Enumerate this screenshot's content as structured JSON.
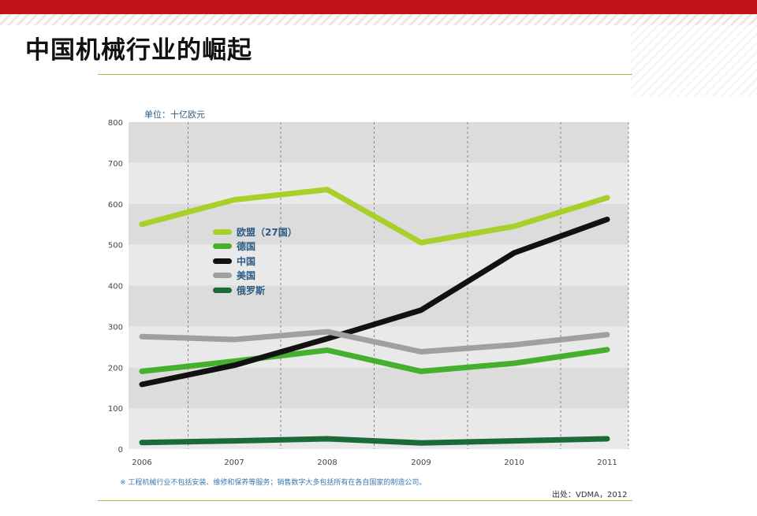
{
  "slide": {
    "title": "中国机械行业的崛起"
  },
  "chart_data": {
    "type": "line",
    "unit_label": "单位：十亿欧元",
    "x": [
      "2006",
      "2007",
      "2008",
      "2009",
      "2010",
      "2011"
    ],
    "ylim": [
      0,
      800
    ],
    "yticks": [
      "0",
      "100",
      "200",
      "300",
      "400",
      "500",
      "600",
      "700",
      "800"
    ],
    "grid": true,
    "legend_position": "upper-left inside",
    "series": [
      {
        "name": "欧盟（27国）",
        "color": "#a8cf2a",
        "values": [
          550,
          610,
          635,
          505,
          545,
          615
        ]
      },
      {
        "name": "德国",
        "color": "#45b02e",
        "values": [
          190,
          215,
          242,
          190,
          210,
          243
        ]
      },
      {
        "name": "中国",
        "color": "#111111",
        "values": [
          158,
          205,
          270,
          340,
          480,
          562
        ]
      },
      {
        "name": "美国",
        "color": "#a0a0a0",
        "values": [
          275,
          268,
          287,
          238,
          255,
          280
        ]
      },
      {
        "name": "俄罗斯",
        "color": "#1a6a3a",
        "values": [
          16,
          20,
          25,
          15,
          20,
          25
        ]
      }
    ],
    "footnote": "※ 工程机械行业不包括安装、维修和保养等服务；销售数字大多包括所有在各自国家的制造公司。",
    "source": "出处：VDMA，2012"
  }
}
